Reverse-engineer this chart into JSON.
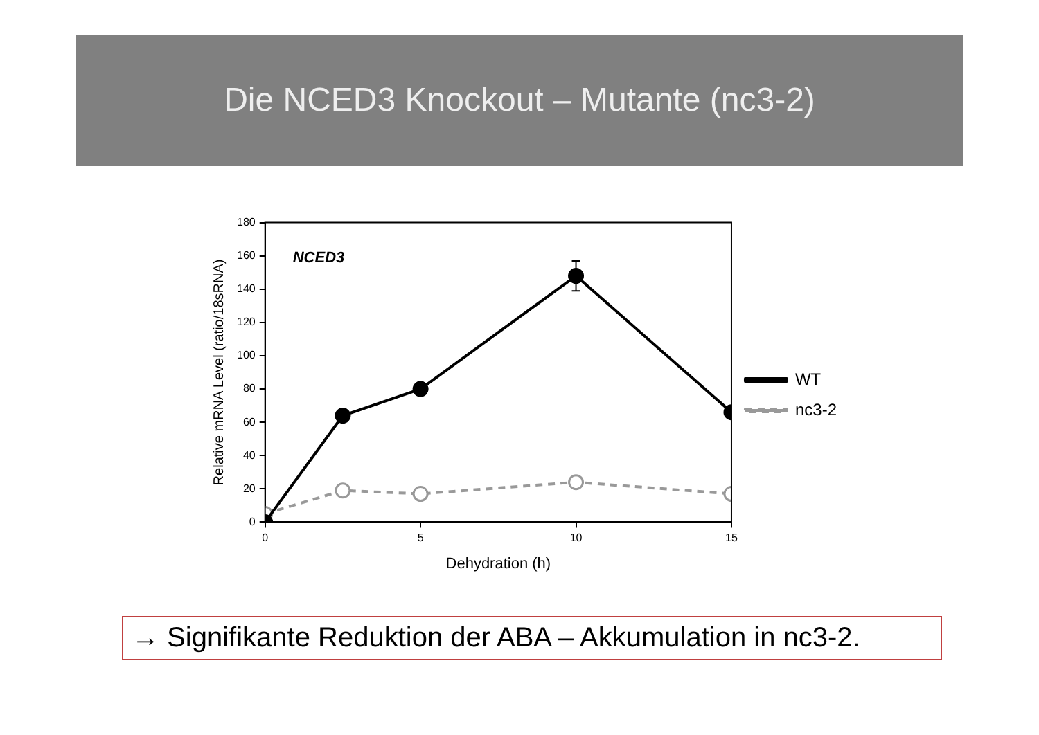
{
  "chart_data": {
    "type": "line",
    "title": "Die NCED3 Knockout – Mutante (nc3-2)",
    "xlabel": "Dehydration (h)",
    "ylabel": "Relative mRNA Level (ratio/18sRNA)",
    "annotations": [
      "NCED3",
      "→ Signifikante Reduktion der ABA – Akkumulation in nc3-2."
    ],
    "x": [
      0,
      2.5,
      5,
      10,
      15
    ],
    "series": [
      {
        "name": "WT",
        "color": "#000000",
        "values": [
          0,
          64,
          80,
          148,
          66
        ],
        "errors": [
          null,
          null,
          null,
          9,
          null
        ],
        "line_style": "solid"
      },
      {
        "name": "nc3-2",
        "color": "#999999",
        "values": [
          5,
          19,
          17,
          24,
          17
        ],
        "line_style": "dashed"
      }
    ],
    "xlim": [
      0,
      15
    ],
    "xticks": [
      0,
      5,
      10,
      15
    ],
    "ylim": [
      0,
      180
    ],
    "yticks": [
      0,
      20,
      40,
      60,
      80,
      100,
      120,
      140,
      160,
      180
    ],
    "grid": false,
    "legend": "right",
    "marker": "circle"
  }
}
